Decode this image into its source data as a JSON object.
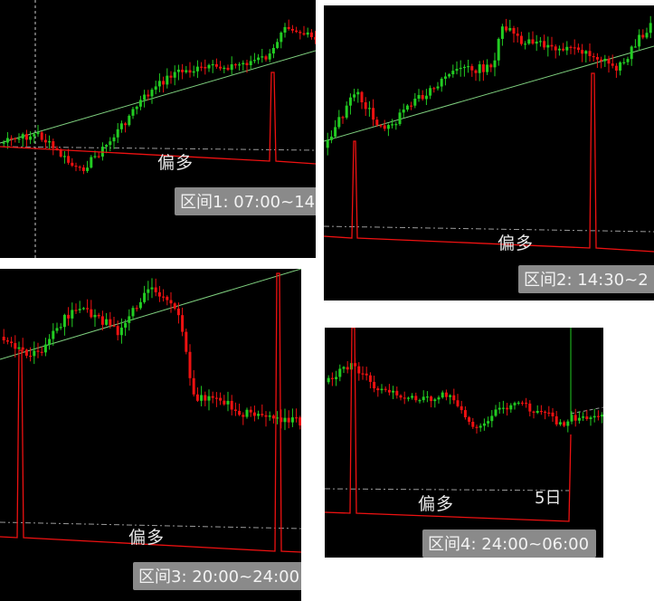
{
  "colors": {
    "background": "#000000",
    "bull_candle": "#22cc22",
    "bear_candle": "#ee1111",
    "trend_line": "#7fd07f",
    "signal_line": "#ee1111",
    "badge_bg": "#8a8a8a",
    "text": "#e8e8e8"
  },
  "panels": [
    {
      "id": "panel-1",
      "bias_label": "偏多",
      "interval_label": "区间1: 07:00~14"
    },
    {
      "id": "panel-2",
      "bias_label": "偏多",
      "interval_label": "区间2: 14:30~2"
    },
    {
      "id": "panel-3",
      "bias_label": "偏多",
      "interval_label": "区间3: 20:00~24:00"
    },
    {
      "id": "panel-4",
      "bias_label": "偏多",
      "interval_label": "区间4: 24:00~06:00",
      "day_label": "5日"
    }
  ]
}
